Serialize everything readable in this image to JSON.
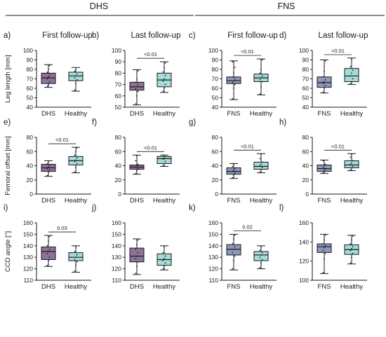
{
  "header": {
    "left_group": "DHS",
    "right_group": "FNS"
  },
  "colors": {
    "DHS": "#8e7299",
    "FNS": "#8f97bd",
    "Healthy": "#a4dcdb",
    "stroke": "#1a1a1a"
  },
  "chart_data": [
    {
      "type": "box",
      "panel": "a)",
      "title": "First follow-up",
      "ylabel": "Leg length [mm]",
      "ylim": [
        40,
        100
      ],
      "yticks": [
        40,
        50,
        60,
        70,
        80,
        90,
        100
      ],
      "series": [
        {
          "category": "DHS",
          "min": 61,
          "q1": 65,
          "median": 71,
          "q3": 76,
          "max": 85,
          "points": [
            62,
            64,
            67,
            70,
            72,
            74,
            77,
            80,
            84
          ]
        },
        {
          "category": "Healthy",
          "min": 57,
          "q1": 68,
          "median": 73,
          "q3": 77,
          "max": 82,
          "points": [
            58,
            65,
            69,
            71,
            73,
            75,
            78,
            80
          ]
        }
      ],
      "comparison": null
    },
    {
      "type": "box",
      "panel": "b)",
      "title": "Last follow-up",
      "ylabel": "",
      "ylim": [
        50,
        100
      ],
      "yticks": [
        50,
        60,
        70,
        80,
        90,
        100
      ],
      "series": [
        {
          "category": "DHS",
          "min": 52,
          "q1": 65,
          "median": 68,
          "q3": 72,
          "max": 83,
          "points": [
            53,
            60,
            64,
            66,
            68,
            70,
            72,
            75,
            82
          ]
        },
        {
          "category": "Healthy",
          "min": 63,
          "q1": 68,
          "median": 74,
          "q3": 80,
          "max": 90,
          "points": [
            64,
            67,
            70,
            73,
            75,
            78,
            81,
            85,
            89
          ]
        }
      ],
      "comparison": "<0.01"
    },
    {
      "type": "box",
      "panel": "c)",
      "title": "First follow-up",
      "ylabel": "",
      "ylim": [
        40,
        100
      ],
      "yticks": [
        40,
        50,
        60,
        70,
        80,
        90,
        100
      ],
      "series": [
        {
          "category": "FNS",
          "min": 48,
          "q1": 65,
          "median": 68,
          "q3": 72,
          "max": 89,
          "points": [
            49,
            60,
            64,
            66,
            68,
            70,
            72,
            76,
            82,
            88
          ]
        },
        {
          "category": "Healthy",
          "min": 53,
          "q1": 67,
          "median": 71,
          "q3": 75,
          "max": 91,
          "points": [
            54,
            62,
            67,
            69,
            71,
            73,
            76,
            80,
            90
          ]
        }
      ],
      "comparison": "<0.01"
    },
    {
      "type": "box",
      "panel": "d)",
      "title": "Last follow-up",
      "ylabel": "",
      "ylim": [
        40,
        100
      ],
      "yticks": [
        40,
        50,
        60,
        70,
        80,
        90,
        100
      ],
      "series": [
        {
          "category": "FNS",
          "min": 55,
          "q1": 61,
          "median": 66,
          "q3": 72,
          "max": 90,
          "points": [
            56,
            60,
            63,
            65,
            67,
            69,
            72,
            78,
            89
          ]
        },
        {
          "category": "Healthy",
          "min": 64,
          "q1": 67,
          "median": 73,
          "q3": 81,
          "max": 92,
          "points": [
            65,
            67,
            70,
            73,
            76,
            79,
            83,
            91
          ]
        }
      ],
      "comparison": "<0.01"
    },
    {
      "type": "box",
      "panel": "e)",
      "title": "",
      "ylabel": "Femoral offset [mm]",
      "ylim": [
        0,
        80
      ],
      "yticks": [
        0,
        20,
        40,
        60,
        80
      ],
      "series": [
        {
          "category": "DHS",
          "min": 25,
          "q1": 32,
          "median": 37,
          "q3": 42,
          "max": 47,
          "points": [
            26,
            31,
            34,
            36,
            38,
            40,
            43,
            46
          ]
        },
        {
          "category": "Healthy",
          "min": 30,
          "q1": 41,
          "median": 47,
          "q3": 53,
          "max": 66,
          "points": [
            31,
            38,
            43,
            46,
            48,
            51,
            55,
            60,
            65
          ]
        }
      ],
      "comparison": "<0.01"
    },
    {
      "type": "box",
      "panel": "f)",
      "title": "",
      "ylabel": "",
      "ylim": [
        0,
        80
      ],
      "yticks": [
        0,
        20,
        40,
        60,
        80
      ],
      "series": [
        {
          "category": "DHS",
          "min": 28,
          "q1": 35,
          "median": 38,
          "q3": 41,
          "max": 55,
          "points": [
            29,
            33,
            36,
            38,
            40,
            42,
            47,
            54
          ]
        },
        {
          "category": "Healthy",
          "min": 39,
          "q1": 43,
          "median": 50,
          "q3": 53,
          "max": 55,
          "points": [
            40,
            43,
            46,
            49,
            51,
            53,
            55
          ]
        }
      ],
      "comparison": "<0.01"
    },
    {
      "type": "box",
      "panel": "g)",
      "title": "",
      "ylabel": "",
      "ylim": [
        0,
        80
      ],
      "yticks": [
        0,
        20,
        40,
        60,
        80
      ],
      "series": [
        {
          "category": "FNS",
          "min": 22,
          "q1": 28,
          "median": 32,
          "q3": 37,
          "max": 43,
          "points": [
            23,
            27,
            30,
            32,
            34,
            36,
            39,
            42
          ]
        },
        {
          "category": "Healthy",
          "min": 30,
          "q1": 35,
          "median": 39,
          "q3": 45,
          "max": 57,
          "points": [
            31,
            35,
            38,
            40,
            42,
            45,
            50,
            56
          ]
        }
      ],
      "comparison": "<0.01"
    },
    {
      "type": "box",
      "panel": "h)",
      "title": "",
      "ylabel": "",
      "ylim": [
        0,
        80
      ],
      "yticks": [
        0,
        20,
        40,
        60,
        80
      ],
      "series": [
        {
          "category": "FNS",
          "min": 29,
          "q1": 32,
          "median": 36,
          "q3": 41,
          "max": 48,
          "points": [
            30,
            33,
            35,
            37,
            39,
            42,
            47
          ]
        },
        {
          "category": "Healthy",
          "min": 33,
          "q1": 37,
          "median": 41,
          "q3": 47,
          "max": 57,
          "points": [
            34,
            37,
            39,
            42,
            44,
            47,
            52,
            56
          ]
        }
      ],
      "comparison": "<0.01"
    },
    {
      "type": "box",
      "panel": "i)",
      "title": "",
      "ylabel": "CCD angle [°]",
      "ylim": [
        110,
        160
      ],
      "yticks": [
        110,
        120,
        130,
        140,
        150,
        160
      ],
      "series": [
        {
          "category": "DHS",
          "min": 122,
          "q1": 128,
          "median": 135,
          "q3": 139,
          "max": 149,
          "points": [
            123,
            127,
            130,
            133,
            135,
            137,
            140,
            144,
            148
          ]
        },
        {
          "category": "Healthy",
          "min": 117,
          "q1": 127,
          "median": 130,
          "q3": 134,
          "max": 140,
          "points": [
            118,
            123,
            126,
            128,
            130,
            132,
            135,
            139
          ]
        }
      ],
      "comparison": "0.03"
    },
    {
      "type": "box",
      "panel": "j)",
      "title": "",
      "ylabel": "",
      "ylim": [
        110,
        160
      ],
      "yticks": [
        110,
        120,
        130,
        140,
        150,
        160
      ],
      "series": [
        {
          "category": "DHS",
          "min": 115,
          "q1": 126,
          "median": 131,
          "q3": 138,
          "max": 146,
          "points": [
            116,
            122,
            126,
            129,
            131,
            134,
            137,
            141,
            145
          ]
        },
        {
          "category": "Healthy",
          "min": 119,
          "q1": 123,
          "median": 128,
          "q3": 133,
          "max": 140,
          "points": [
            120,
            122,
            125,
            127,
            129,
            131,
            134,
            139
          ]
        }
      ],
      "comparison": null
    },
    {
      "type": "box",
      "panel": "k)",
      "title": "",
      "ylabel": "",
      "ylim": [
        110,
        160
      ],
      "yticks": [
        110,
        120,
        130,
        140,
        150,
        160
      ],
      "series": [
        {
          "category": "FNS",
          "min": 119,
          "q1": 132,
          "median": 137,
          "q3": 141,
          "max": 150,
          "points": [
            120,
            127,
            131,
            134,
            137,
            139,
            142,
            146,
            149
          ]
        },
        {
          "category": "Healthy",
          "min": 120,
          "q1": 127,
          "median": 132,
          "q3": 135,
          "max": 140,
          "points": [
            121,
            125,
            128,
            130,
            132,
            134,
            136,
            139
          ]
        }
      ],
      "comparison": "0.02"
    },
    {
      "type": "box",
      "panel": "l)",
      "title": "",
      "ylabel": "",
      "ylim": [
        100,
        160
      ],
      "yticks": [
        100,
        120,
        140,
        160
      ],
      "series": [
        {
          "category": "FNS",
          "min": 107,
          "q1": 129,
          "median": 135,
          "q3": 138,
          "max": 148,
          "points": [
            108,
            122,
            128,
            131,
            134,
            136,
            138,
            142,
            147
          ]
        },
        {
          "category": "Healthy",
          "min": 117,
          "q1": 127,
          "median": 132,
          "q3": 137,
          "max": 147,
          "points": [
            118,
            124,
            128,
            131,
            133,
            135,
            138,
            142,
            146
          ]
        }
      ],
      "comparison": null
    }
  ]
}
